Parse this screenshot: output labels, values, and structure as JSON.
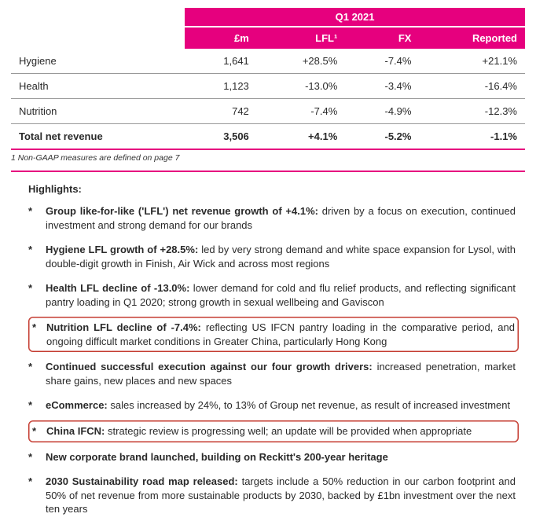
{
  "table": {
    "period": "Q1 2021",
    "columns": [
      "£m",
      "LFL¹",
      "FX",
      "Reported"
    ],
    "rows": [
      {
        "label": "Hygiene",
        "m": "1,641",
        "lfl": "+28.5%",
        "fx": "-7.4%",
        "rep": "+21.1%"
      },
      {
        "label": "Health",
        "m": "1,123",
        "lfl": "-13.0%",
        "fx": "-3.4%",
        "rep": "-16.4%"
      },
      {
        "label": "Nutrition",
        "m": "742",
        "lfl": "-7.4%",
        "fx": "-4.9%",
        "rep": "-12.3%"
      }
    ],
    "total": {
      "label": "Total net revenue",
      "m": "3,506",
      "lfl": "+4.1%",
      "fx": "-5.2%",
      "rep": "-1.1%"
    }
  },
  "footnote": "1   Non-GAAP measures are defined on page 7",
  "highlights_title": "Highlights:",
  "highlights": [
    {
      "lead": "Group like-for-like ('LFL') net revenue growth of +4.1%:",
      "body": " driven by a focus on execution, continued investment and strong demand for our brands",
      "boxed": false
    },
    {
      "lead": "Hygiene LFL growth of +28.5%:",
      "body": " led by very strong demand and white space expansion for Lysol, with double-digit growth in Finish, Air Wick and across most regions",
      "boxed": false
    },
    {
      "lead": "Health LFL decline of -13.0%:",
      "body": " lower demand for cold and flu relief products, and reflecting significant pantry loading in Q1 2020; strong growth in sexual wellbeing and Gaviscon",
      "boxed": false
    },
    {
      "lead": "Nutrition LFL decline of -7.4%:",
      "body": " reflecting US IFCN pantry loading in the comparative period, and ongoing difficult market conditions in Greater China, particularly Hong Kong",
      "boxed": true
    },
    {
      "lead": "Continued successful execution against our four growth drivers:",
      "body": " increased penetration, market share gains, new places and new spaces",
      "boxed": false
    },
    {
      "lead": "eCommerce:",
      "body": " sales increased by 24%, to 13% of Group net revenue, as result of increased investment",
      "boxed": false
    },
    {
      "lead": "China IFCN:",
      "body": " strategic review is progressing well; an update will be provided when appropriate",
      "boxed": true
    },
    {
      "lead": "New corporate brand launched, building on Reckitt's 200-year heritage",
      "body": "",
      "boxed": false
    },
    {
      "lead": "2030 Sustainability road map released:",
      "body": " targets include a 50% reduction in our carbon footprint and 50% of net revenue from more sustainable products by 2030, backed by £1bn investment over the next ten years",
      "boxed": false
    }
  ]
}
